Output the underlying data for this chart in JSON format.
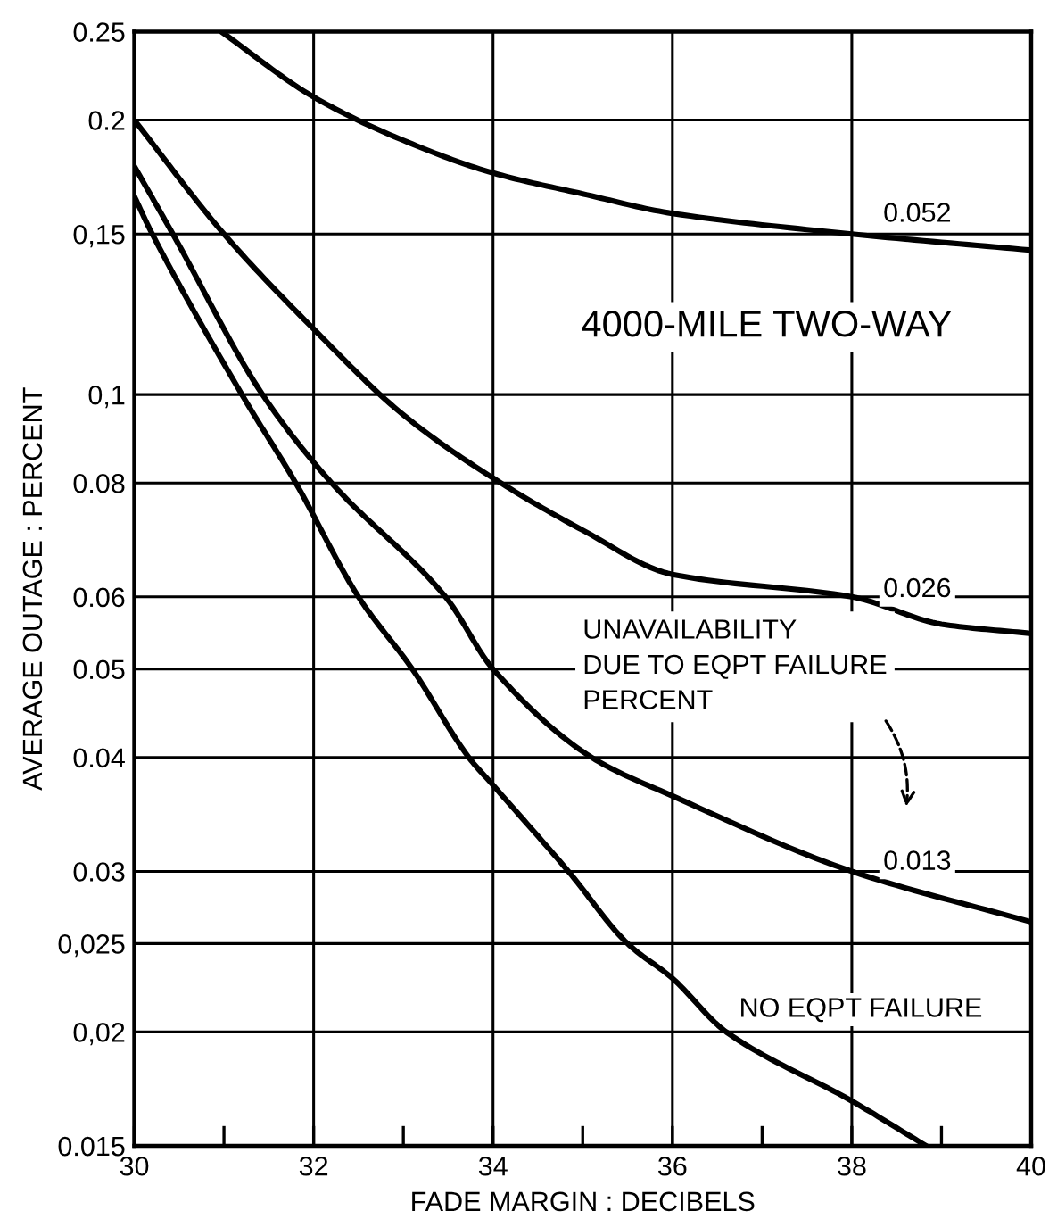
{
  "chart_data": {
    "type": "line",
    "title": "4000-MILE TWO-WAY",
    "legend_title": "UNAVAILABILITY\nDUE TO EQPT FAILURE\nPERCENT",
    "xlabel": "FADE MARGIN : DECIBELS",
    "ylabel": "AVERAGE OUTAGE : PERCENT",
    "log": "y",
    "grid": true,
    "legend": false,
    "line_style": "solid",
    "marker": "none",
    "xlim": [
      30,
      40
    ],
    "xticks": [
      30,
      {
        "value": 31,
        "label": null
      },
      32,
      {
        "value": 33,
        "label": null
      },
      34,
      {
        "value": 35,
        "label": null
      },
      36,
      {
        "value": 37,
        "label": null
      },
      38,
      {
        "value": 39,
        "label": null
      },
      40
    ],
    "ylim": [
      0.015,
      0.25
    ],
    "yticks": [
      {
        "value": 0.015,
        "label": "0.015"
      },
      {
        "value": 0.02,
        "label": "0,02"
      },
      {
        "value": 0.025,
        "label": "0,025"
      },
      0.03,
      0.04,
      0.05,
      0.06,
      0.08,
      {
        "value": 0.1,
        "label": "0,1"
      },
      {
        "value": 0.15,
        "label": "0,15"
      },
      0.2,
      0.25
    ],
    "series": [
      {
        "name": "0.052",
        "color": "#000000",
        "x": [
          30.97,
          32,
          33,
          34,
          35,
          36,
          38,
          40
        ],
        "values": [
          0.25,
          0.212,
          0.19,
          0.175,
          0.166,
          0.158,
          0.15,
          0.144
        ]
      },
      {
        "name": "0.026",
        "color": "#000000",
        "x": [
          30,
          31,
          32,
          33,
          34,
          35,
          36,
          38,
          39,
          40
        ],
        "values": [
          0.2,
          0.15,
          0.118,
          0.095,
          0.081,
          0.071,
          0.0635,
          0.06,
          0.056,
          0.0547
        ]
      },
      {
        "name": "0.013",
        "color": "#000000",
        "x": [
          30,
          30.43,
          31.43,
          32.2,
          33.47,
          34,
          35.1,
          36,
          38,
          40
        ],
        "values": [
          0.178,
          0.15,
          0.1,
          0.08,
          0.06,
          0.05,
          0.04,
          0.0363,
          0.03,
          0.0264
        ]
      },
      {
        "name": "NO EQPT FAILURE",
        "color": "#000000",
        "x": [
          30,
          30.2,
          31.2,
          31.8,
          32.5,
          33.1,
          33.73,
          34,
          34.84,
          35.5,
          36,
          36.6,
          38,
          38.83
        ],
        "values": [
          0.165,
          0.15,
          0.1,
          0.08,
          0.06,
          0.05,
          0.04,
          0.0373,
          0.03,
          0.025,
          0.0229,
          0.02,
          0.0168,
          0.015
        ]
      }
    ]
  }
}
